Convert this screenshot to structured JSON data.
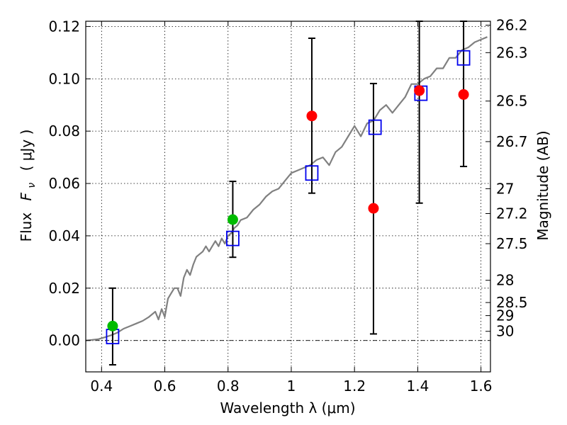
{
  "chart_data": {
    "type": "scatter",
    "xlabel": "Wavelength  λ (μm)",
    "ylabel": "Flux  F_ν  ( μJy )",
    "ylabel_parts": {
      "prefix": "Flux",
      "symbol": "F",
      "subscript": "ν",
      "unit": "( μJy )"
    },
    "ylabel_right": "Magnitude (AB)",
    "xlim": [
      0.35,
      1.63
    ],
    "ylim": [
      -0.012,
      0.122
    ],
    "grid": true,
    "xticks": [
      {
        "value": 0.4,
        "label": "0.4"
      },
      {
        "value": 0.6,
        "label": "0.6"
      },
      {
        "value": 0.8,
        "label": "0.8"
      },
      {
        "value": 1.0,
        "label": "1"
      },
      {
        "value": 1.2,
        "label": "1.2"
      },
      {
        "value": 1.4,
        "label": "1.4"
      },
      {
        "value": 1.6,
        "label": "1.6"
      }
    ],
    "yticks": [
      {
        "value": 0.0,
        "label": "0.00"
      },
      {
        "value": 0.02,
        "label": "0.02"
      },
      {
        "value": 0.04,
        "label": "0.04"
      },
      {
        "value": 0.06,
        "label": "0.06"
      },
      {
        "value": 0.08,
        "label": "0.08"
      },
      {
        "value": 0.1,
        "label": "0.10"
      },
      {
        "value": 0.12,
        "label": "0.12"
      }
    ],
    "yticks_right": [
      {
        "flux": 0.1205,
        "label": "26.2"
      },
      {
        "flux": 0.11,
        "label": "26.3"
      },
      {
        "flux": 0.0915,
        "label": "26.5"
      },
      {
        "flux": 0.076,
        "label": "26.7"
      },
      {
        "flux": 0.058,
        "label": "27"
      },
      {
        "flux": 0.0485,
        "label": "27.2"
      },
      {
        "flux": 0.037,
        "label": "27.5"
      },
      {
        "flux": 0.023,
        "label": "28"
      },
      {
        "flux": 0.0145,
        "label": "28.5"
      },
      {
        "flux": 0.0095,
        "label": "29"
      },
      {
        "flux": 0.0035,
        "label": "30"
      }
    ],
    "zero_line": 0.0,
    "model_spectrum": {
      "color": "#808080",
      "x": [
        0.35,
        0.37,
        0.39,
        0.41,
        0.43,
        0.45,
        0.47,
        0.49,
        0.51,
        0.53,
        0.55,
        0.57,
        0.58,
        0.59,
        0.6,
        0.61,
        0.62,
        0.63,
        0.64,
        0.65,
        0.66,
        0.67,
        0.68,
        0.69,
        0.7,
        0.71,
        0.72,
        0.73,
        0.74,
        0.75,
        0.76,
        0.77,
        0.78,
        0.79,
        0.8,
        0.81,
        0.82,
        0.83,
        0.84,
        0.86,
        0.88,
        0.9,
        0.92,
        0.94,
        0.96,
        0.98,
        1.0,
        1.02,
        1.04,
        1.06,
        1.08,
        1.1,
        1.12,
        1.14,
        1.16,
        1.18,
        1.2,
        1.22,
        1.24,
        1.26,
        1.28,
        1.3,
        1.32,
        1.34,
        1.36,
        1.38,
        1.4,
        1.42,
        1.44,
        1.46,
        1.48,
        1.5,
        1.52,
        1.54,
        1.56,
        1.58,
        1.6,
        1.62
      ],
      "y": [
        0.0,
        0.0002,
        0.0005,
        0.0012,
        0.002,
        0.003,
        0.0045,
        0.0055,
        0.0065,
        0.0075,
        0.009,
        0.011,
        0.008,
        0.012,
        0.009,
        0.016,
        0.018,
        0.02,
        0.02,
        0.017,
        0.024,
        0.027,
        0.025,
        0.029,
        0.032,
        0.033,
        0.034,
        0.036,
        0.034,
        0.036,
        0.038,
        0.036,
        0.039,
        0.037,
        0.04,
        0.041,
        0.043,
        0.044,
        0.046,
        0.047,
        0.05,
        0.052,
        0.055,
        0.057,
        0.058,
        0.061,
        0.064,
        0.065,
        0.066,
        0.067,
        0.069,
        0.07,
        0.067,
        0.072,
        0.074,
        0.078,
        0.082,
        0.078,
        0.083,
        0.084,
        0.088,
        0.09,
        0.087,
        0.09,
        0.093,
        0.098,
        0.098,
        0.1,
        0.101,
        0.104,
        0.104,
        0.108,
        0.108,
        0.111,
        0.112,
        0.114,
        0.115,
        0.116
      ]
    },
    "series": [
      {
        "marker": "square",
        "color": "#0000ee",
        "points": [
          {
            "x": 0.435,
            "y": 0.0015
          },
          {
            "x": 0.815,
            "y": 0.039
          },
          {
            "x": 1.065,
            "y": 0.064
          },
          {
            "x": 1.265,
            "y": 0.0815
          },
          {
            "x": 1.41,
            "y": 0.0945
          },
          {
            "x": 1.545,
            "y": 0.108
          }
        ]
      },
      {
        "marker": "circle",
        "color": "#00bb00",
        "points": [
          {
            "x": 0.435,
            "y": 0.0055,
            "yerr_low": -0.0093,
            "yerr_high": 0.02
          },
          {
            "x": 0.815,
            "y": 0.0462,
            "yerr_low": 0.0318,
            "yerr_high": 0.0608
          }
        ]
      },
      {
        "marker": "circle",
        "color": "#ff0000",
        "points": [
          {
            "x": 1.065,
            "y": 0.0858,
            "yerr_low": 0.0563,
            "yerr_high": 0.1155
          },
          {
            "x": 1.26,
            "y": 0.0505,
            "yerr_low": 0.0025,
            "yerr_high": 0.0982
          },
          {
            "x": 1.405,
            "y": 0.0955,
            "yerr_low": 0.0525,
            "yerr_high": 0.122
          },
          {
            "x": 1.545,
            "y": 0.094,
            "yerr_low": 0.0665,
            "yerr_high": 0.122
          }
        ]
      }
    ]
  }
}
